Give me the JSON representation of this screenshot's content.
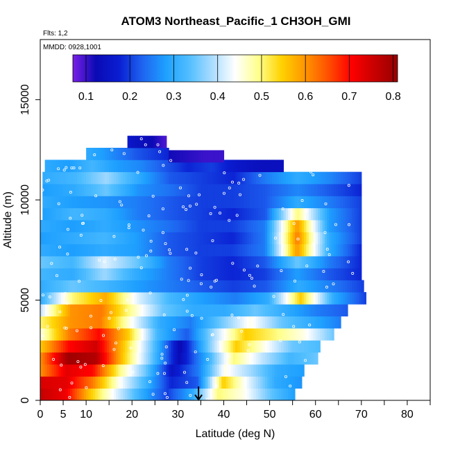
{
  "chart_data": {
    "type": "heatmap",
    "title": "ATOM3 Northeast_Pacific_1 CH3OH_GMI",
    "annotations": [
      "Flts: 1,2",
      "MMDD: 0928,1001"
    ],
    "xlabel": "Latitude (deg N)",
    "ylabel": "Altitude (m)",
    "xlim": [
      0,
      85
    ],
    "ylim": [
      0,
      18000
    ],
    "x_ticks": [
      0,
      5,
      10,
      20,
      30,
      40,
      50,
      60,
      70,
      80
    ],
    "x_minor_ticks": [
      15,
      25,
      35,
      45,
      55,
      65,
      75,
      85
    ],
    "y_ticks": [
      0,
      5000,
      10000,
      15000
    ],
    "colorbar": {
      "min": 0.07,
      "max": 0.81,
      "ticks": [
        0.1,
        0.2,
        0.3,
        0.4,
        0.5,
        0.6,
        0.7,
        0.8
      ],
      "colors": [
        "#7a1fe6",
        "#0a0ab4",
        "#0a1ed2",
        "#1e64f0",
        "#1ea0ff",
        "#50beff",
        "#aadcff",
        "#ffffff",
        "#ffff8c",
        "#ffd200",
        "#ff9600",
        "#ff5000",
        "#ff0000",
        "#c80000",
        "#960000"
      ]
    },
    "marker": {
      "latitude": 34.5,
      "altitude": 0
    },
    "altitude_bin_m": 600,
    "rows": [
      {
        "alt": 0,
        "lat": [
          0,
          55.5
        ],
        "vals": [
          0.76,
          0.72,
          0.55,
          0.42,
          0.3,
          0.2,
          0.3,
          0.5,
          0.45,
          0.35,
          0.28
        ]
      },
      {
        "alt": 600,
        "lat": [
          0,
          57
        ],
        "vals": [
          0.74,
          0.73,
          0.62,
          0.45,
          0.32,
          0.18,
          0.22,
          0.55,
          0.42,
          0.3,
          0.27
        ]
      },
      {
        "alt": 1200,
        "lat": [
          0,
          57.5
        ],
        "vals": [
          0.6,
          0.73,
          0.7,
          0.5,
          0.35,
          0.15,
          0.25,
          0.45,
          0.38,
          0.3,
          0.28
        ]
      },
      {
        "alt": 1800,
        "lat": [
          0,
          60.5
        ],
        "vals": [
          0.6,
          0.8,
          0.78,
          0.55,
          0.35,
          0.13,
          0.3,
          0.5,
          0.4,
          0.32,
          0.35
        ]
      },
      {
        "alt": 2400,
        "lat": [
          0,
          61
        ],
        "vals": [
          0.55,
          0.7,
          0.75,
          0.55,
          0.35,
          0.12,
          0.35,
          0.55,
          0.45,
          0.35,
          0.33
        ]
      },
      {
        "alt": 3000,
        "lat": [
          0,
          64
        ],
        "vals": [
          0.45,
          0.62,
          0.7,
          0.55,
          0.32,
          0.22,
          0.4,
          0.55,
          0.5,
          0.45,
          0.35
        ]
      },
      {
        "alt": 3600,
        "lat": [
          0,
          65.5
        ],
        "vals": [
          0.5,
          0.6,
          0.62,
          0.45,
          0.3,
          0.25,
          0.35,
          0.45,
          0.35,
          0.3,
          0.25
        ]
      },
      {
        "alt": 4200,
        "lat": [
          0,
          67
        ],
        "vals": [
          0.4,
          0.6,
          0.62,
          0.48,
          0.35,
          0.3,
          0.3,
          0.35,
          0.3,
          0.25,
          0.22
        ]
      },
      {
        "alt": 4800,
        "lat": [
          0,
          71
        ],
        "vals": [
          0.3,
          0.5,
          0.58,
          0.42,
          0.32,
          0.28,
          0.25,
          0.3,
          0.55,
          0.3,
          0.2
        ]
      },
      {
        "alt": 5400,
        "lat": [
          0,
          70.5
        ],
        "vals": [
          0.3,
          0.35,
          0.32,
          0.28,
          0.25,
          0.22,
          0.2,
          0.22,
          0.3,
          0.25,
          0.2
        ]
      },
      {
        "alt": 6000,
        "lat": [
          0,
          70
        ],
        "vals": [
          0.32,
          0.3,
          0.38,
          0.3,
          0.25,
          0.2,
          0.18,
          0.2,
          0.28,
          0.22,
          0.18
        ]
      },
      {
        "alt": 6600,
        "lat": [
          0,
          70
        ],
        "vals": [
          0.35,
          0.32,
          0.42,
          0.35,
          0.25,
          0.2,
          0.18,
          0.22,
          0.35,
          0.25,
          0.18
        ]
      },
      {
        "alt": 7200,
        "lat": [
          0,
          70
        ],
        "vals": [
          0.3,
          0.28,
          0.3,
          0.28,
          0.22,
          0.2,
          0.2,
          0.25,
          0.6,
          0.3,
          0.18
        ]
      },
      {
        "alt": 7800,
        "lat": [
          0,
          70
        ],
        "vals": [
          0.28,
          0.3,
          0.32,
          0.28,
          0.22,
          0.2,
          0.18,
          0.25,
          0.62,
          0.3,
          0.2
        ]
      },
      {
        "alt": 8400,
        "lat": [
          0,
          70
        ],
        "vals": [
          0.3,
          0.28,
          0.3,
          0.27,
          0.24,
          0.2,
          0.2,
          0.25,
          0.6,
          0.28,
          0.2
        ]
      },
      {
        "alt": 9000,
        "lat": [
          0.5,
          70
        ],
        "vals": [
          0.28,
          0.32,
          0.3,
          0.25,
          0.22,
          0.2,
          0.18,
          0.22,
          0.5,
          0.28,
          0.2
        ]
      },
      {
        "alt": 9600,
        "lat": [
          0.5,
          70
        ],
        "vals": [
          0.3,
          0.28,
          0.27,
          0.25,
          0.22,
          0.2,
          0.2,
          0.22,
          0.3,
          0.25,
          0.2
        ]
      },
      {
        "alt": 10200,
        "lat": [
          0.5,
          70
        ],
        "vals": [
          0.28,
          0.3,
          0.35,
          0.27,
          0.24,
          0.2,
          0.2,
          0.22,
          0.26,
          0.22,
          0.18
        ]
      },
      {
        "alt": 10800,
        "lat": [
          0.5,
          70
        ],
        "vals": [
          0.3,
          0.32,
          0.38,
          0.3,
          0.22,
          0.2,
          0.18,
          0.25,
          0.3,
          0.26,
          0.2
        ]
      },
      {
        "alt": 11400,
        "lat": [
          1,
          53
        ],
        "vals": [
          0.3,
          0.28,
          0.32,
          0.28,
          0.26,
          0.22,
          0.18,
          0.2,
          0.16,
          0.14,
          0.14
        ]
      },
      {
        "alt": 12000,
        "lat": [
          10,
          28
        ],
        "vals": [
          0.3,
          0.28,
          0.25,
          0.22,
          0.2,
          0.18
        ]
      },
      {
        "alt": 12600,
        "lat": [
          19,
          27.5
        ],
        "vals": [
          0.16,
          0.14,
          0.12,
          0.09
        ]
      }
    ],
    "top_extras": [
      {
        "alt": 11880,
        "lat": [
          28,
          40
        ],
        "vals": [
          0.12,
          0.11,
          0.1,
          0.1
        ]
      }
    ]
  }
}
